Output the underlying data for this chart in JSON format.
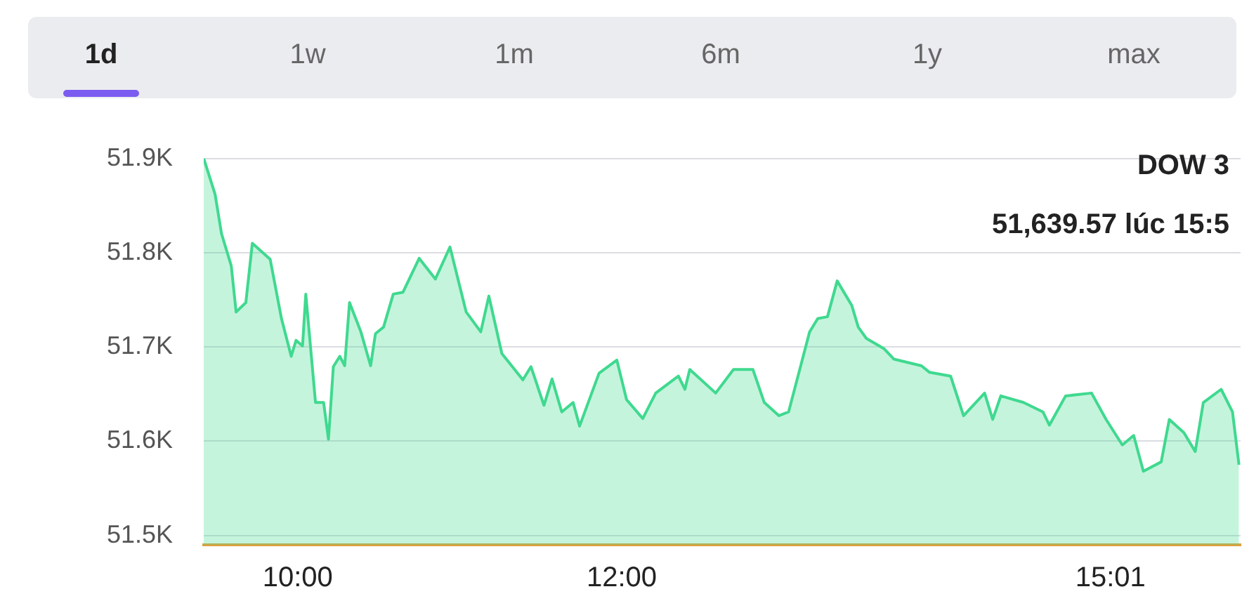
{
  "chart_data": {
    "type": "area",
    "annotations": [
      "1d",
      "1w",
      "1m",
      "6m",
      "1y",
      "max",
      "DOW 3",
      "51,639.57 lúc 15:5"
    ],
    "x": [
      9.42,
      9.49,
      9.53,
      9.59,
      9.62,
      9.68,
      9.72,
      9.83,
      9.9,
      9.96,
      9.99,
      10.03,
      10.05,
      10.11,
      10.16,
      10.19,
      10.22,
      10.26,
      10.29,
      10.32,
      10.39,
      10.45,
      10.48,
      10.53,
      10.59,
      10.65,
      10.75,
      10.85,
      10.94,
      11.04,
      11.13,
      11.18,
      11.26,
      11.39,
      11.44,
      11.52,
      11.57,
      11.63,
      11.7,
      11.74,
      11.86,
      11.97,
      12.03,
      12.13,
      12.21,
      12.35,
      12.39,
      12.42,
      12.58,
      12.69,
      12.81,
      12.88,
      12.97,
      13.03,
      13.16,
      13.21,
      13.27,
      13.33,
      13.42,
      13.46,
      13.51,
      13.62,
      13.68,
      13.85,
      13.9,
      14.03,
      14.11,
      14.24,
      14.29,
      14.34,
      14.48,
      14.6,
      14.64,
      14.74,
      14.9,
      14.99,
      15.09,
      15.16,
      15.22,
      15.33,
      15.38,
      15.47,
      15.54,
      15.59,
      15.7,
      15.77,
      15.81
    ],
    "series": [
      {
        "color": "#3fd98f",
        "values": [
          51900,
          51862,
          51820,
          51786,
          51737,
          51747,
          51810,
          51793,
          51730,
          51690,
          51707,
          51701,
          51756,
          51641,
          51641,
          51602,
          51679,
          51690,
          51680,
          51747,
          51716,
          51680,
          51714,
          51721,
          51756,
          51758,
          51794,
          51772,
          51806,
          51737,
          51716,
          51754,
          51693,
          51665,
          51679,
          51638,
          51666,
          51631,
          51641,
          51616,
          51672,
          51686,
          51644,
          51624,
          51651,
          51669,
          51655,
          51676,
          51651,
          51676,
          51676,
          51641,
          51627,
          51631,
          51716,
          51730,
          51732,
          51770,
          51744,
          51721,
          51709,
          51698,
          51687,
          51680,
          51673,
          51669,
          51627,
          51651,
          51623,
          51648,
          51641,
          51631,
          51617,
          51648,
          51651,
          51623,
          51596,
          51606,
          51568,
          51578,
          51623,
          51609,
          51589,
          51641,
          51655,
          51631,
          51575
        ]
      }
    ],
    "xlim": [
      9.42,
      15.82
    ],
    "xticks": [
      {
        "value": 10,
        "label": "10:00"
      },
      {
        "value": 12,
        "label": "12:00"
      },
      {
        "value": 15.0167,
        "label": "15:01"
      }
    ],
    "ylim": [
      51490,
      51900
    ],
    "yticks": [
      {
        "value": 51500,
        "label": "51.5K"
      },
      {
        "value": 51600,
        "label": "51.6K"
      },
      {
        "value": 51700,
        "label": "51.7K"
      },
      {
        "value": 51800,
        "label": "51.8K"
      },
      {
        "value": 51900,
        "label": "51.9K"
      }
    ],
    "grid": "y",
    "legend": false,
    "marker": "none",
    "line_style": "solid"
  }
}
